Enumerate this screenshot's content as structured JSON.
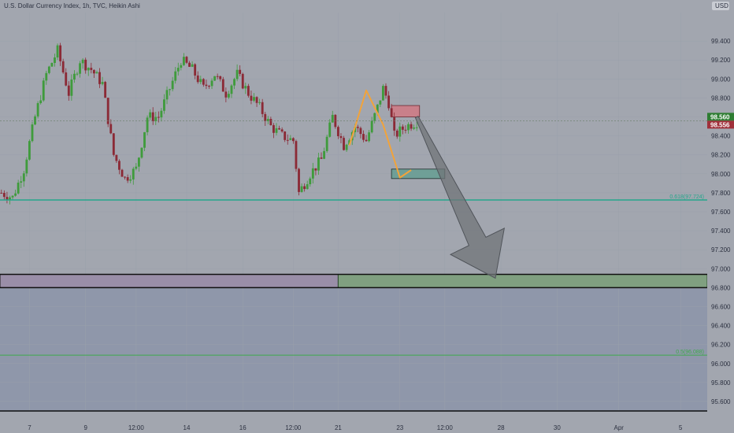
{
  "header": {
    "title": "U.S. Dollar Currency Index, 1h, TVC, Heikin Ashi",
    "currency": "USD"
  },
  "colors": {
    "background_top": "#a2a6af",
    "background_bottom": "#8f97aa",
    "bull": "#3f9b3c",
    "bear": "#8b2a36",
    "fib_line": "#25a58c",
    "fib_line_2": "#3eaa4c",
    "zone_purple": "#9a8ea8",
    "zone_green": "#80a080",
    "zone_red": "#c9808a",
    "zone_teal": "#6f9f97",
    "path_orange": "#f2a33a",
    "arrow_gray": "#707478",
    "tag_green": "#2e7d32",
    "tag_red": "#a0303a"
  },
  "price_tags": {
    "current": "98.560",
    "close": "98.556"
  },
  "fib_labels": {
    "upper": "0.618(97.724)",
    "lower": "0.5(96.088)"
  },
  "chart_data": {
    "type": "candlestick",
    "title": "U.S. Dollar Currency Index, 1h, TVC, Heikin Ashi",
    "ylim": [
      95.5,
      99.7
    ],
    "y_ticks": [
      "99.400",
      "99.200",
      "99.000",
      "98.800",
      "98.600",
      "98.400",
      "98.200",
      "98.000",
      "97.800",
      "97.600",
      "97.400",
      "97.200",
      "97.000",
      "96.800",
      "96.600",
      "96.400",
      "96.200",
      "96.000",
      "95.800",
      "95.600"
    ],
    "y_tick_values": [
      99.4,
      99.2,
      99.0,
      98.8,
      98.6,
      98.4,
      98.2,
      98.0,
      97.8,
      97.6,
      97.4,
      97.2,
      97.0,
      96.8,
      96.6,
      96.4,
      96.2,
      96.0,
      95.8,
      95.6
    ],
    "x_ticks": [
      "7",
      "9",
      "12:00",
      "14",
      "16",
      "12:00",
      "21",
      "23",
      "12:00",
      "28",
      "30",
      "Apr",
      "5"
    ],
    "x_tick_index": [
      10,
      30,
      48,
      66,
      86,
      104,
      120,
      142,
      158,
      178,
      198,
      220,
      242
    ],
    "bars_total": 252,
    "price_path": [
      [
        0,
        97.8
      ],
      [
        4,
        97.75
      ],
      [
        8,
        98.05
      ],
      [
        12,
        98.6
      ],
      [
        16,
        99.05
      ],
      [
        20,
        99.3
      ],
      [
        24,
        98.85
      ],
      [
        28,
        99.2
      ],
      [
        32,
        99.1
      ],
      [
        36,
        98.95
      ],
      [
        40,
        98.2
      ],
      [
        44,
        97.95
      ],
      [
        48,
        98.05
      ],
      [
        52,
        98.6
      ],
      [
        56,
        98.6
      ],
      [
        60,
        98.9
      ],
      [
        64,
        99.2
      ],
      [
        68,
        99.1
      ],
      [
        72,
        98.9
      ],
      [
        76,
        99.05
      ],
      [
        80,
        98.85
      ],
      [
        84,
        99.05
      ],
      [
        88,
        98.85
      ],
      [
        92,
        98.7
      ],
      [
        96,
        98.5
      ],
      [
        100,
        98.4
      ],
      [
        104,
        98.35
      ],
      [
        106,
        97.8
      ],
      [
        110,
        98.0
      ],
      [
        114,
        98.15
      ],
      [
        118,
        98.6
      ],
      [
        122,
        98.3
      ],
      [
        126,
        98.5
      ],
      [
        130,
        98.35
      ],
      [
        134,
        98.7
      ],
      [
        136,
        98.9
      ],
      [
        138,
        98.75
      ],
      [
        140,
        98.4
      ],
      [
        144,
        98.5
      ],
      [
        148,
        98.55
      ]
    ],
    "fib_levels": [
      97.724,
      96.088
    ],
    "purple_zone": [
      96.8,
      96.94
    ],
    "green_zone": [
      96.8,
      96.94
    ],
    "red_zone": [
      98.6,
      98.72
    ],
    "teal_zone": [
      97.95,
      98.05
    ],
    "orange_path": [
      [
        124,
        98.3
      ],
      [
        130,
        98.88
      ],
      [
        136,
        98.52
      ],
      [
        142,
        97.96
      ],
      [
        146,
        98.04
      ]
    ],
    "arrow": {
      "from": [
        148,
        98.6
      ],
      "to": [
        176,
        96.9
      ]
    },
    "last_price": 98.56
  }
}
